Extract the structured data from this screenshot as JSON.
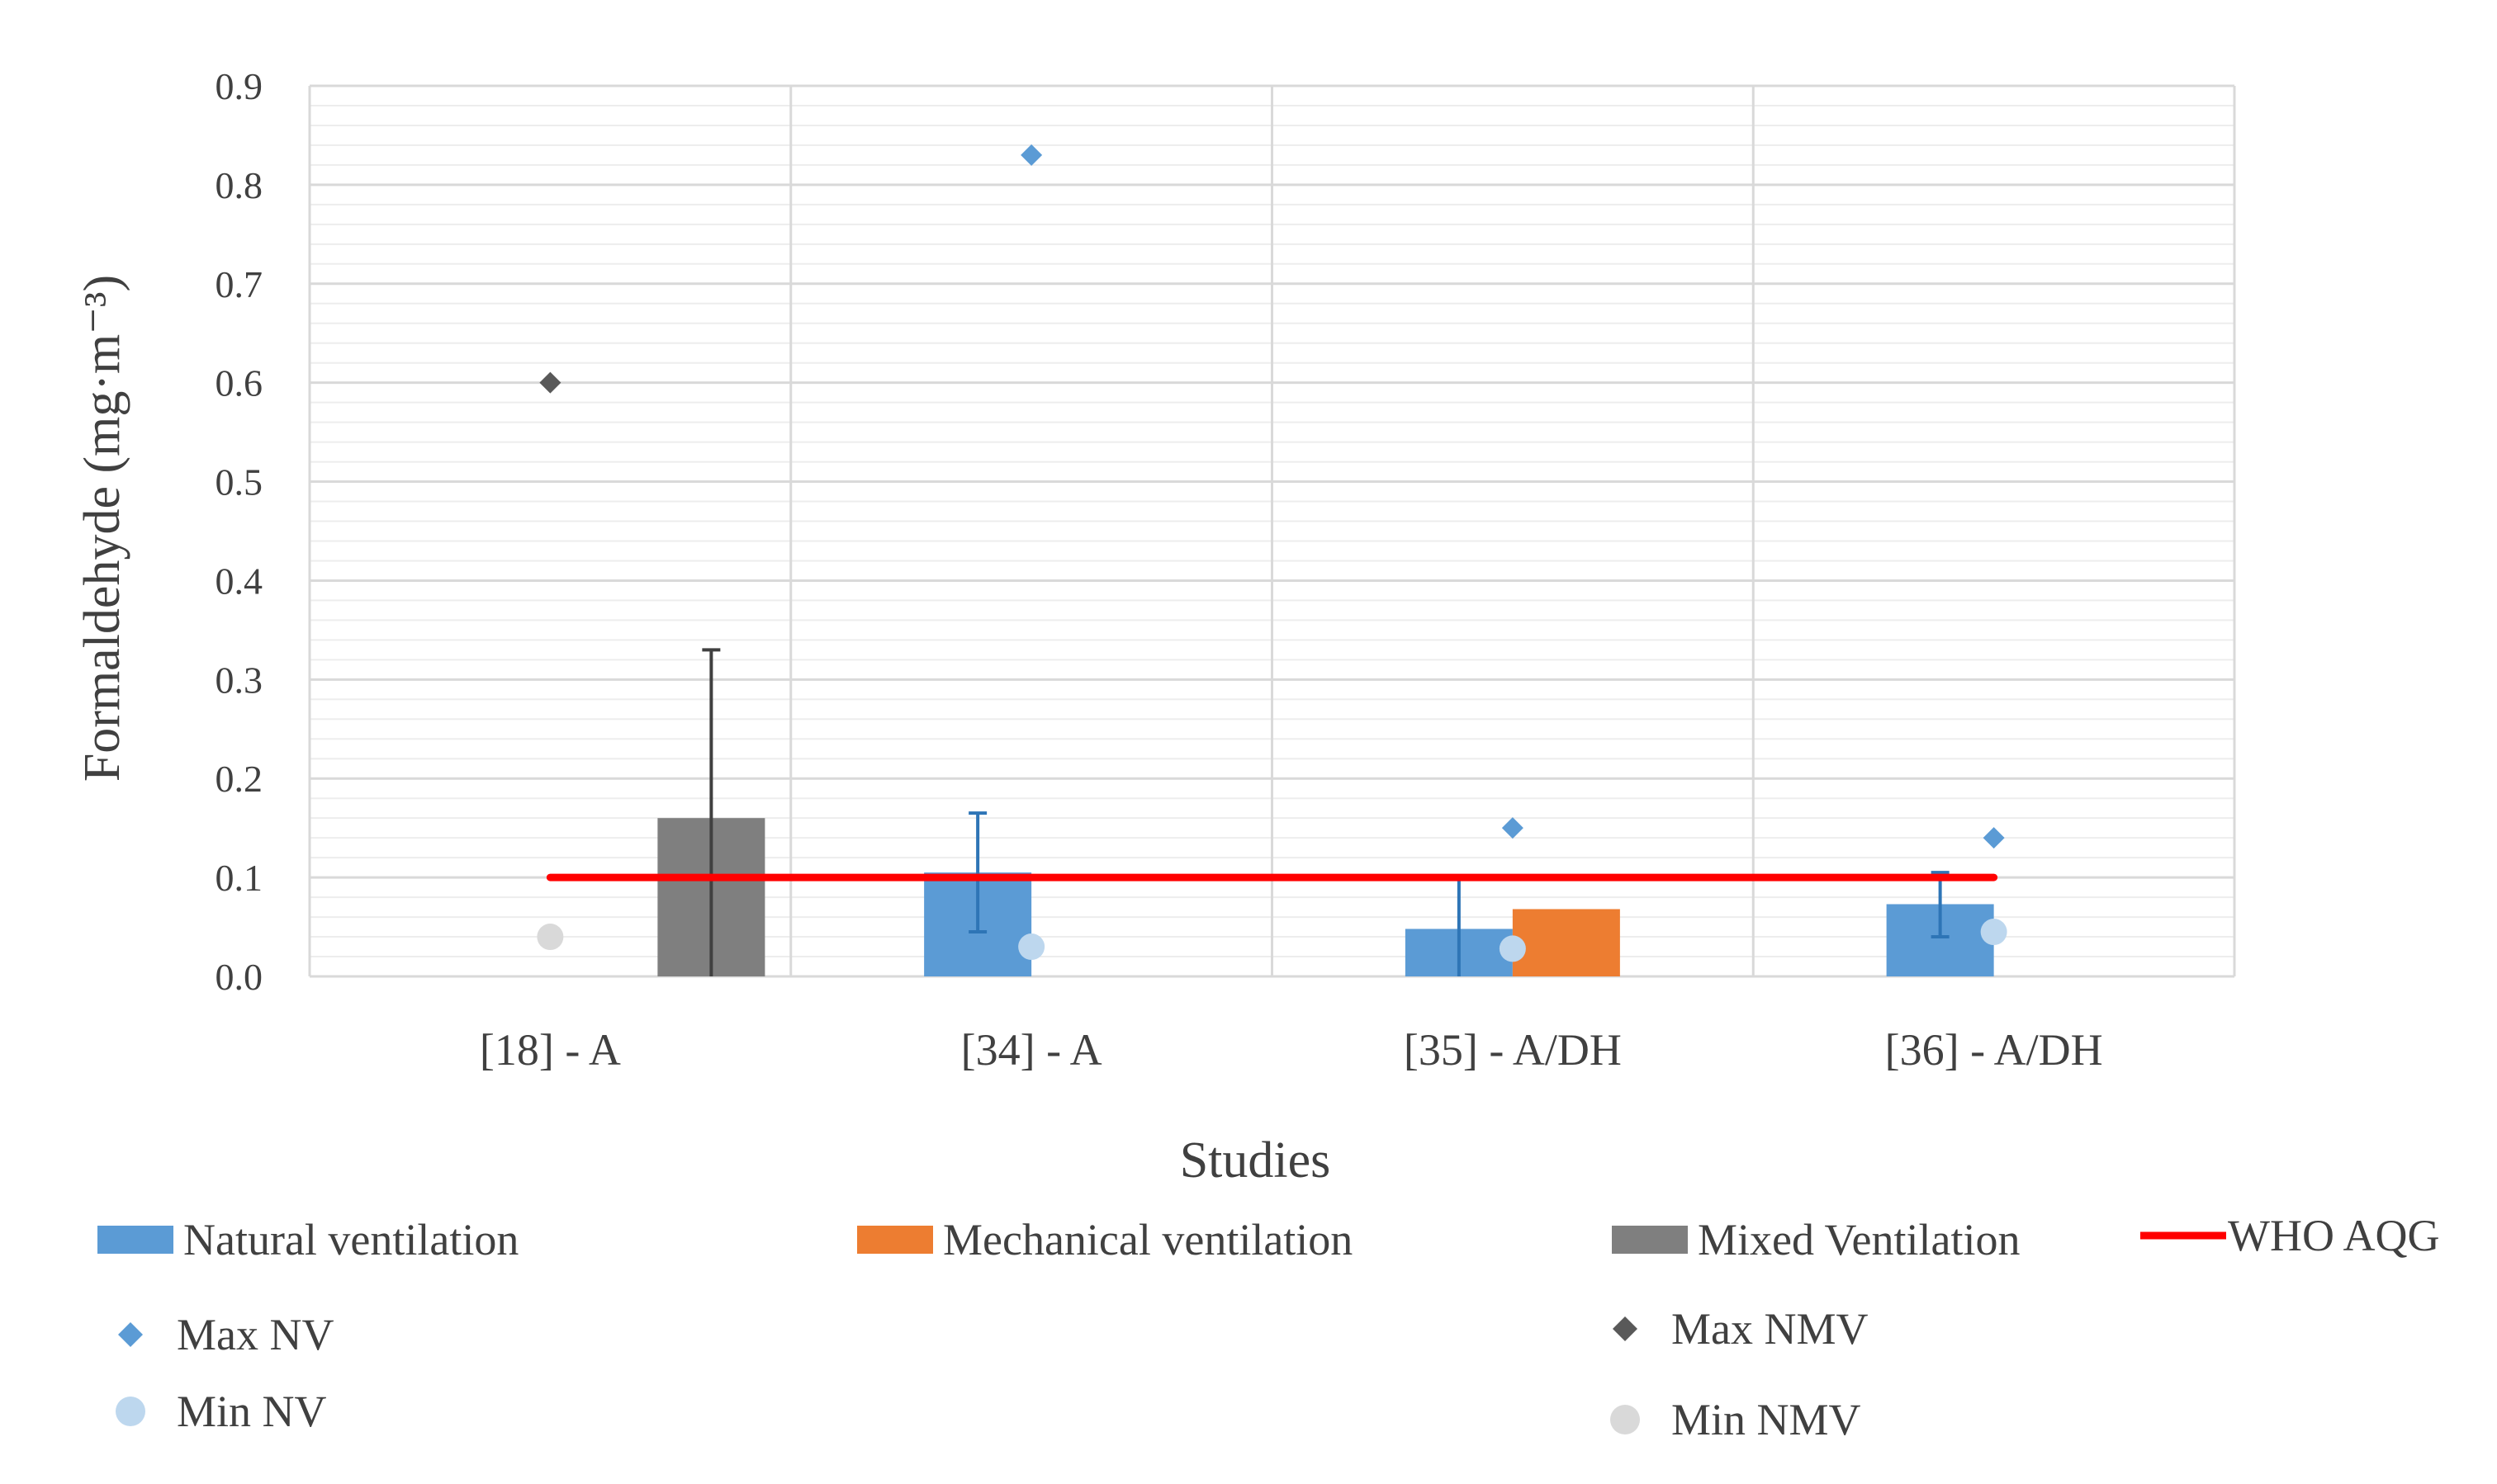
{
  "chart_data": {
    "type": "bar",
    "xlabel": "Studies",
    "ylabel": "Formaldehyde (mg·m⁻³)",
    "ylim": [
      0,
      0.9
    ],
    "yticks": [
      "0.0",
      "0.1",
      "0.2",
      "0.3",
      "0.4",
      "0.5",
      "0.6",
      "0.7",
      "0.8",
      "0.9"
    ],
    "grid": true,
    "legend_position": "bottom",
    "categories": [
      "[18] - A",
      "[34] - A",
      "[35]  - A/DH",
      "[36] - A/DH"
    ],
    "bar_series": [
      {
        "name": "Natural ventilation",
        "color": "#5B9BD5",
        "values": [
          null,
          0.105,
          0.048,
          0.073
        ],
        "error_upper": [
          null,
          0.165,
          0.1,
          0.105
        ],
        "error_lower": [
          null,
          0.045,
          0.0,
          0.04
        ]
      },
      {
        "name": "Mechanical ventilation",
        "color": "#ED7D31",
        "values": [
          null,
          null,
          0.068,
          null
        ],
        "error_upper": [
          null,
          null,
          null,
          null
        ],
        "error_lower": [
          null,
          null,
          null,
          null
        ]
      },
      {
        "name": "Mixed Ventilation",
        "color": "#7F7F7F",
        "values": [
          0.16,
          null,
          null,
          null
        ],
        "error_upper": [
          0.33,
          null,
          null,
          null
        ],
        "error_lower": [
          0.0,
          null,
          null,
          null
        ]
      }
    ],
    "line_series": [
      {
        "name": "WHO AQG",
        "color": "#FF0000",
        "values": [
          0.1,
          0.1,
          0.1,
          0.1
        ]
      }
    ],
    "marker_series": [
      {
        "name": "Max NV",
        "marker": "diamond",
        "color": "#5B9BD5",
        "values": [
          null,
          0.83,
          0.15,
          0.14
        ]
      },
      {
        "name": "Max NMV",
        "marker": "diamond",
        "color": "#595959",
        "values": [
          0.6,
          null,
          null,
          null
        ]
      },
      {
        "name": "Min NV",
        "marker": "circle",
        "color": "#BDD7EE",
        "values": [
          null,
          0.03,
          0.028,
          0.045
        ]
      },
      {
        "name": "Min NMV",
        "marker": "circle",
        "color": "#D9D9D9",
        "values": [
          0.04,
          null,
          null,
          null
        ]
      }
    ]
  },
  "legend": [
    {
      "label": "Natural ventilation",
      "kind": "bar",
      "color": "#5B9BD5"
    },
    {
      "label": "Mechanical ventilation",
      "kind": "bar",
      "color": "#ED7D31"
    },
    {
      "label": "Mixed Ventilation",
      "kind": "bar",
      "color": "#7F7F7F"
    },
    {
      "label": "WHO AQG",
      "kind": "line",
      "color": "#FF0000"
    },
    {
      "label": "Max NV",
      "kind": "diamond",
      "color": "#5B9BD5"
    },
    {
      "label": "Max NMV",
      "kind": "diamond",
      "color": "#595959"
    },
    {
      "label": "Min NV",
      "kind": "circle",
      "color": "#BDD7EE"
    },
    {
      "label": "Min NMV",
      "kind": "circle",
      "color": "#D9D9D9"
    }
  ]
}
